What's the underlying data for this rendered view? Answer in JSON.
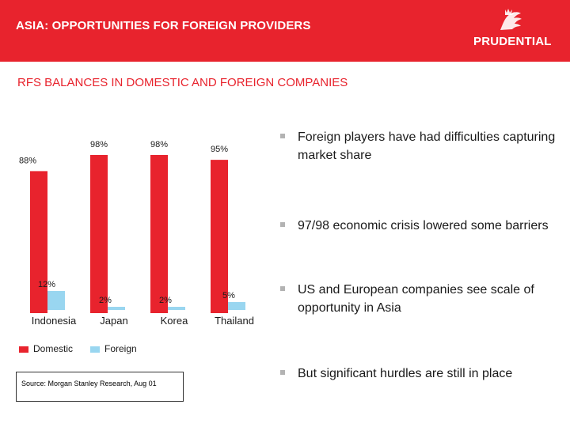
{
  "header": {
    "title": "ASIA: OPPORTUNITIES FOR FOREIGN PROVIDERS",
    "brand": "PRUDENTIAL"
  },
  "section_title": "RFS BALANCES IN DOMESTIC AND FOREIGN COMPANIES",
  "bullets": [
    "Foreign players have had difficulties capturing market share",
    "97/98 economic crisis lowered some barriers",
    "US and European companies see scale of opportunity in Asia",
    "But significant hurdles are still in place"
  ],
  "source": "Source: Morgan Stanley Research, Aug 01",
  "colors": {
    "header": "#e8232d",
    "domestic": "#e8232d",
    "foreign": "#99d6f0",
    "title": "#e8232d"
  },
  "chart_data": {
    "type": "bar",
    "categories": [
      "Indonesia",
      "Japan",
      "Korea",
      "Thailand"
    ],
    "series": [
      {
        "name": "Domestic",
        "values": [
          88,
          98,
          98,
          95
        ],
        "labels": [
          "88%",
          "98%",
          "98%",
          "95%"
        ]
      },
      {
        "name": "Foreign",
        "values": [
          12,
          2,
          2,
          5
        ],
        "labels": [
          "12%",
          "2%",
          "2%",
          "5%"
        ]
      }
    ],
    "ylim": [
      0,
      100
    ],
    "legend": "bottom-left",
    "grid": false
  }
}
